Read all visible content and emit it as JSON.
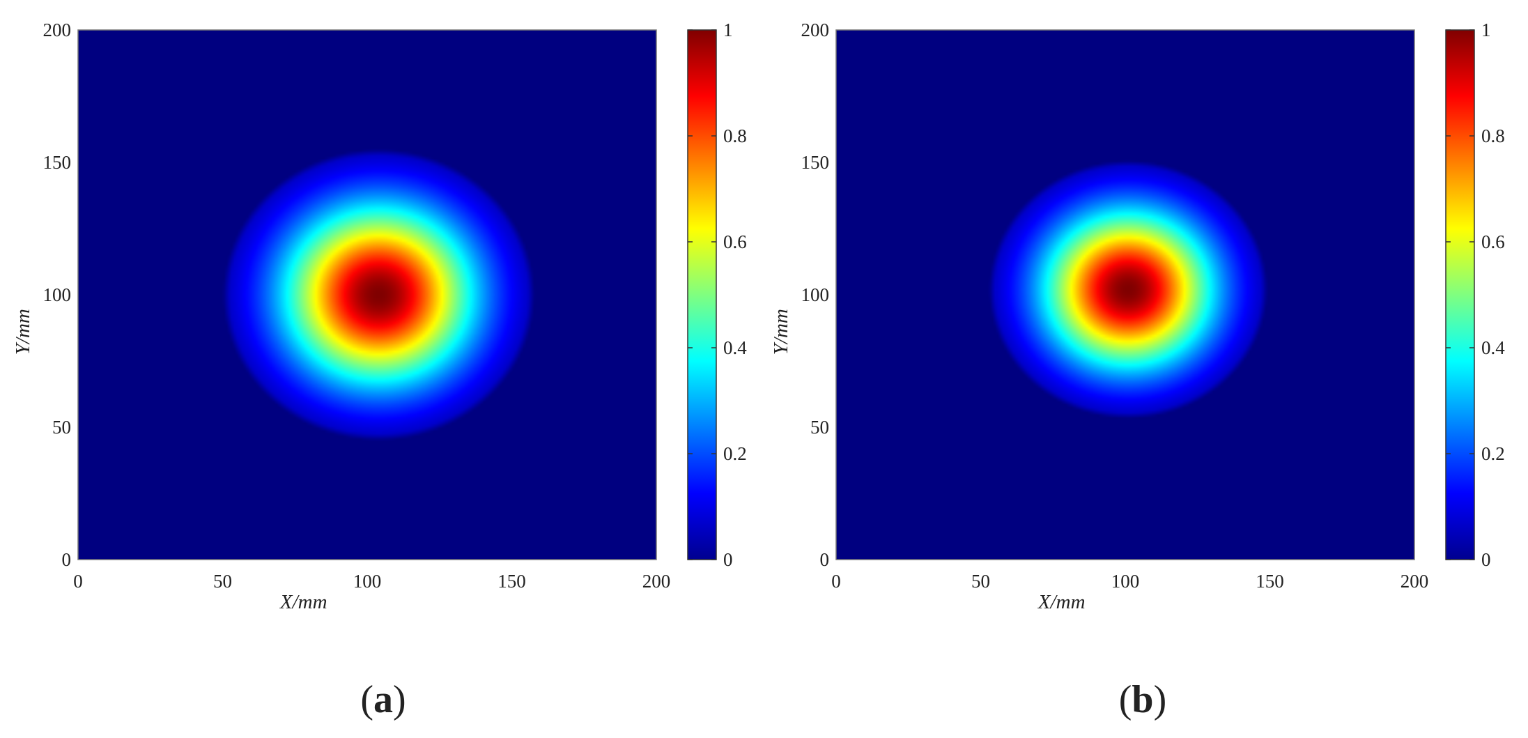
{
  "chart_data": [
    {
      "type": "heatmap",
      "panel_label": "a",
      "xlabel": "X/mm",
      "ylabel": "Y/mm",
      "xlim": [
        0,
        200
      ],
      "ylim": [
        0,
        200
      ],
      "xticks": [
        "0",
        "50",
        "100",
        "150",
        "200"
      ],
      "yticks": [
        "0",
        "50",
        "100",
        "150",
        "200"
      ],
      "colorbar": {
        "range": [
          0,
          1
        ],
        "ticks": [
          "0",
          "0.2",
          "0.4",
          "0.6",
          "0.8",
          "1"
        ],
        "colormap": "jet"
      },
      "field": {
        "shape": "gaussian",
        "peak": 1.0,
        "center_x": 104,
        "center_y": 100,
        "extent_x": [
          52,
          155
        ],
        "extent_y": [
          48,
          153
        ]
      }
    },
    {
      "type": "heatmap",
      "panel_label": "b",
      "xlabel": "X/mm",
      "ylabel": "Y/mm",
      "xlim": [
        0,
        200
      ],
      "ylim": [
        0,
        200
      ],
      "xticks": [
        "0",
        "50",
        "100",
        "150",
        "200"
      ],
      "yticks": [
        "0",
        "50",
        "100",
        "150",
        "200"
      ],
      "colorbar": {
        "range": [
          0,
          1
        ],
        "ticks": [
          "0",
          "0.2",
          "0.4",
          "0.6",
          "0.8",
          "1"
        ],
        "colormap": "jet"
      },
      "field": {
        "shape": "gaussian",
        "peak": 1.0,
        "center_x": 101,
        "center_y": 102,
        "extent_x": [
          56,
          148
        ],
        "extent_y": [
          55,
          148
        ]
      }
    }
  ],
  "colors": {
    "background_low": "#00008f",
    "peak": "#800000",
    "axis": "#333333"
  }
}
